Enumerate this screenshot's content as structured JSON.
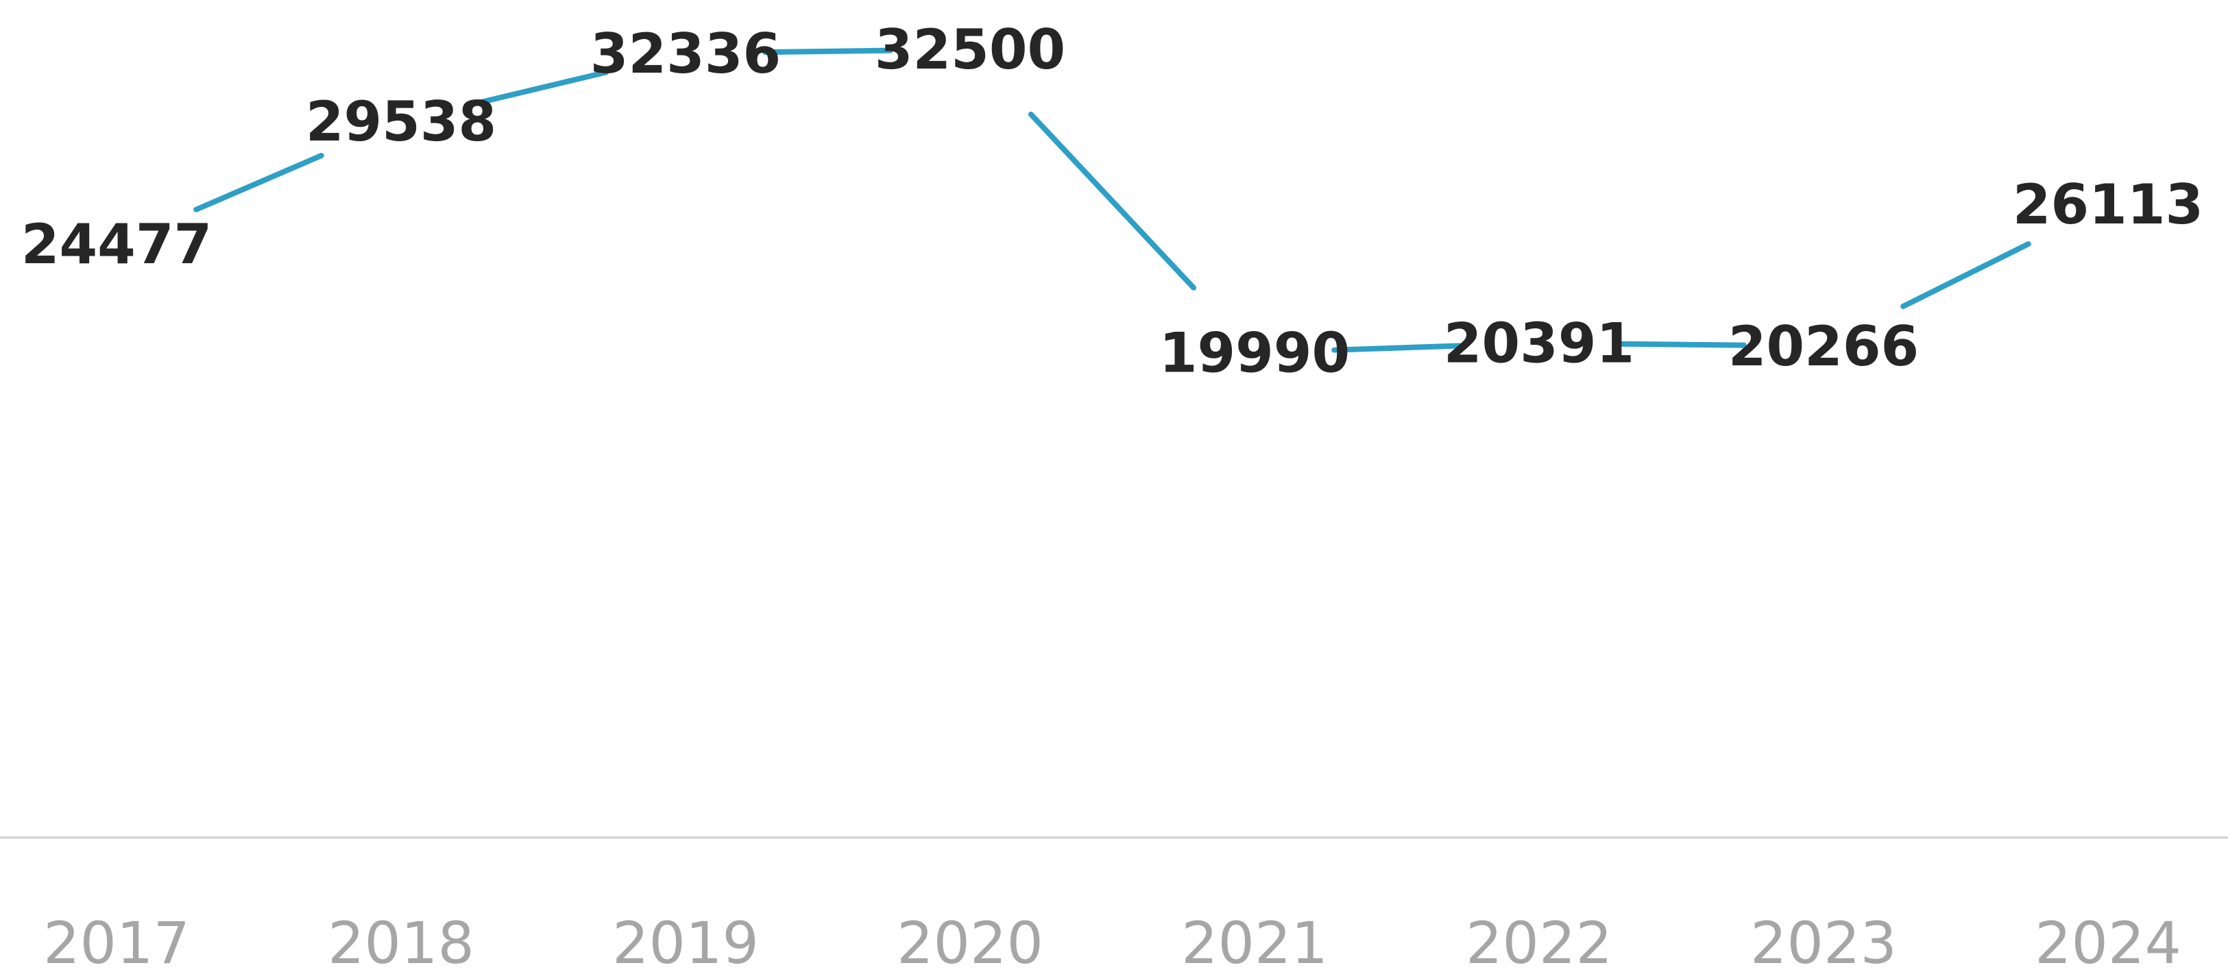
{
  "chart_data": {
    "type": "line",
    "title": "",
    "xlabel": "",
    "ylabel": "",
    "categories": [
      "2017",
      "2018",
      "2019",
      "2020",
      "2021",
      "2022",
      "2023",
      "2024"
    ],
    "series": [
      {
        "values": [
          24477,
          29538,
          32336,
          32500,
          19990,
          20391,
          20266,
          26113
        ]
      }
    ],
    "data_labels": [
      "24477",
      "29538",
      "32336",
      "32500",
      "19990",
      "20391",
      "20266",
      "26113"
    ],
    "ylim": [
      0,
      32500
    ],
    "grid": false,
    "legend": "none",
    "colors": {
      "series_line": "#2e9fc6",
      "data_label": "#262626",
      "tick_label": "#a6a6a6",
      "axis_line": "#d9d9d9"
    }
  }
}
